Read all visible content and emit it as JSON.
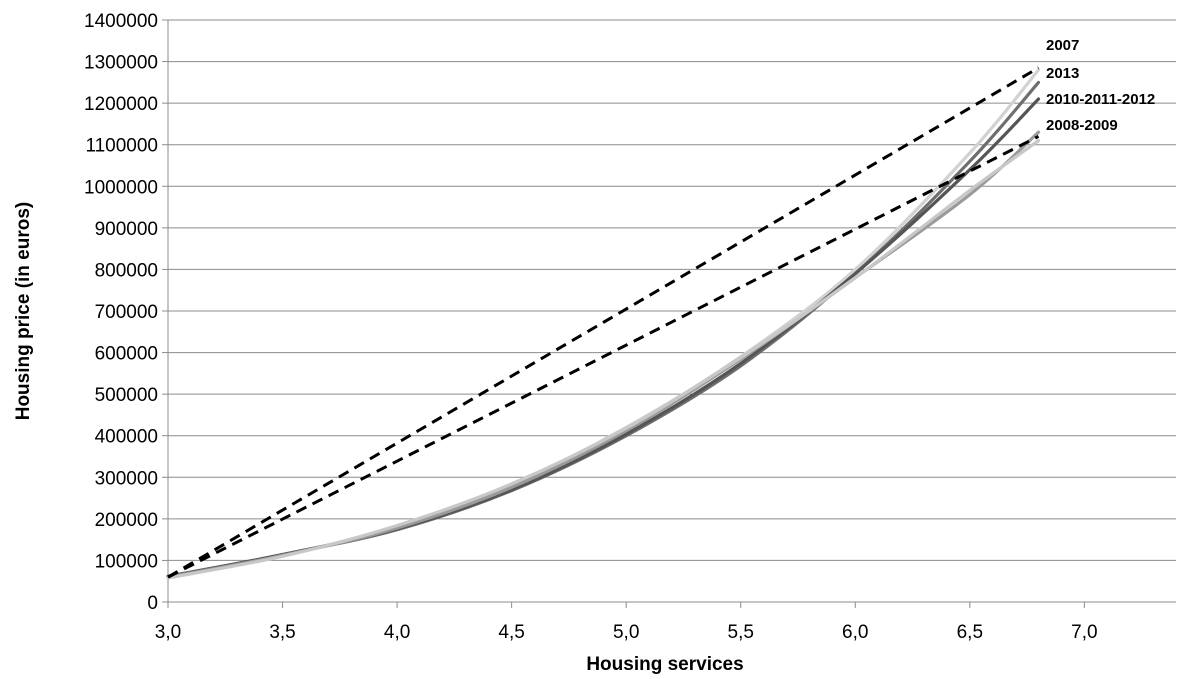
{
  "chart_data": {
    "type": "line",
    "xlabel": "Housing services",
    "ylabel": "Housing price (in euros)",
    "xlim": [
      3.0,
      7.4
    ],
    "ylim": [
      0,
      1400000
    ],
    "x_ticks": [
      3.0,
      3.5,
      4.0,
      4.5,
      5.0,
      5.5,
      6.0,
      6.5,
      7.0
    ],
    "x_tick_labels": [
      "3,0",
      "3,5",
      "4,0",
      "4,5",
      "5,0",
      "5,5",
      "6,0",
      "6,5",
      "7,0"
    ],
    "y_ticks": [
      0,
      100000,
      200000,
      300000,
      400000,
      500000,
      600000,
      700000,
      800000,
      900000,
      1000000,
      1100000,
      1200000,
      1300000,
      1400000
    ],
    "y_tick_labels": [
      "0",
      "100000",
      "200000",
      "300000",
      "400000",
      "500000",
      "600000",
      "700000",
      "800000",
      "900000",
      "1000000",
      "1100000",
      "1200000",
      "1300000",
      "1400000"
    ],
    "grid": "horizontal",
    "series": [
      {
        "name": "2007",
        "color": "#d2d2d2",
        "style": "solid",
        "x": [
          3.0,
          3.5,
          4.0,
          4.5,
          5.0,
          5.5,
          6.0,
          6.5,
          6.8
        ],
        "y": [
          62000,
          112000,
          182000,
          282000,
          420000,
          590000,
          800000,
          1080000,
          1280000
        ]
      },
      {
        "name": "2013",
        "color": "#6e6e6e",
        "style": "solid",
        "x": [
          3.0,
          3.5,
          4.0,
          4.5,
          5.0,
          5.5,
          6.0,
          6.5,
          6.8
        ],
        "y": [
          62000,
          114000,
          174000,
          268000,
          400000,
          568000,
          790000,
          1060000,
          1250000
        ]
      },
      {
        "name": "2010-2011-2012",
        "color": "#555555",
        "style": "solid",
        "x": [
          3.0,
          3.5,
          4.0,
          4.5,
          5.0,
          5.5,
          6.0,
          6.5,
          6.8
        ],
        "y": [
          60000,
          114000,
          176000,
          270000,
          404000,
          574000,
          790000,
          1040000,
          1210000
        ]
      },
      {
        "name": "2008-2009",
        "color": "#9a9a9a",
        "style": "solid",
        "x": [
          3.0,
          3.5,
          4.0,
          4.5,
          5.0,
          5.5,
          6.0,
          6.5,
          6.8
        ],
        "y": [
          60000,
          112000,
          178000,
          276000,
          412000,
          584000,
          780000,
          980000,
          1130000
        ]
      },
      {
        "color": "#c8c8c8",
        "style": "solid",
        "x": [
          3.0,
          3.5,
          4.0,
          4.5,
          5.0,
          5.5,
          6.0,
          6.5,
          6.8
        ],
        "y": [
          58000,
          110000,
          184000,
          284000,
          418000,
          588000,
          780000,
          990000,
          1110000
        ]
      },
      {
        "color": "#000000",
        "style": "dashed",
        "x": [
          3.0,
          6.8
        ],
        "y": [
          60000,
          1285000
        ]
      },
      {
        "color": "#000000",
        "style": "dashed",
        "x": [
          3.0,
          6.8
        ],
        "y": [
          60000,
          1120000
        ]
      }
    ]
  }
}
